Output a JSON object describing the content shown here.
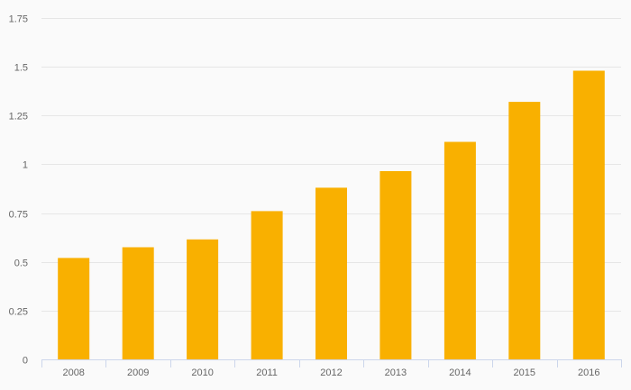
{
  "chart_data": {
    "type": "bar",
    "categories": [
      "2008",
      "2009",
      "2010",
      "2011",
      "2012",
      "2013",
      "2014",
      "2015",
      "2016"
    ],
    "values": [
      0.52,
      0.575,
      0.615,
      0.76,
      0.88,
      0.965,
      1.115,
      1.32,
      1.48
    ],
    "y_ticks": [
      "0",
      "0.25",
      "0.5",
      "0.75",
      "1",
      "1.25",
      "1.5",
      "1.75"
    ],
    "ylim": [
      0,
      1.75
    ],
    "grid": true,
    "legend": "none",
    "title": "",
    "xlabel": "",
    "ylabel": ""
  },
  "colors": {
    "bar": "#f9b000",
    "grid": "#e6e6e6",
    "axis": "#ccd6eb",
    "background": "#fafafa"
  }
}
